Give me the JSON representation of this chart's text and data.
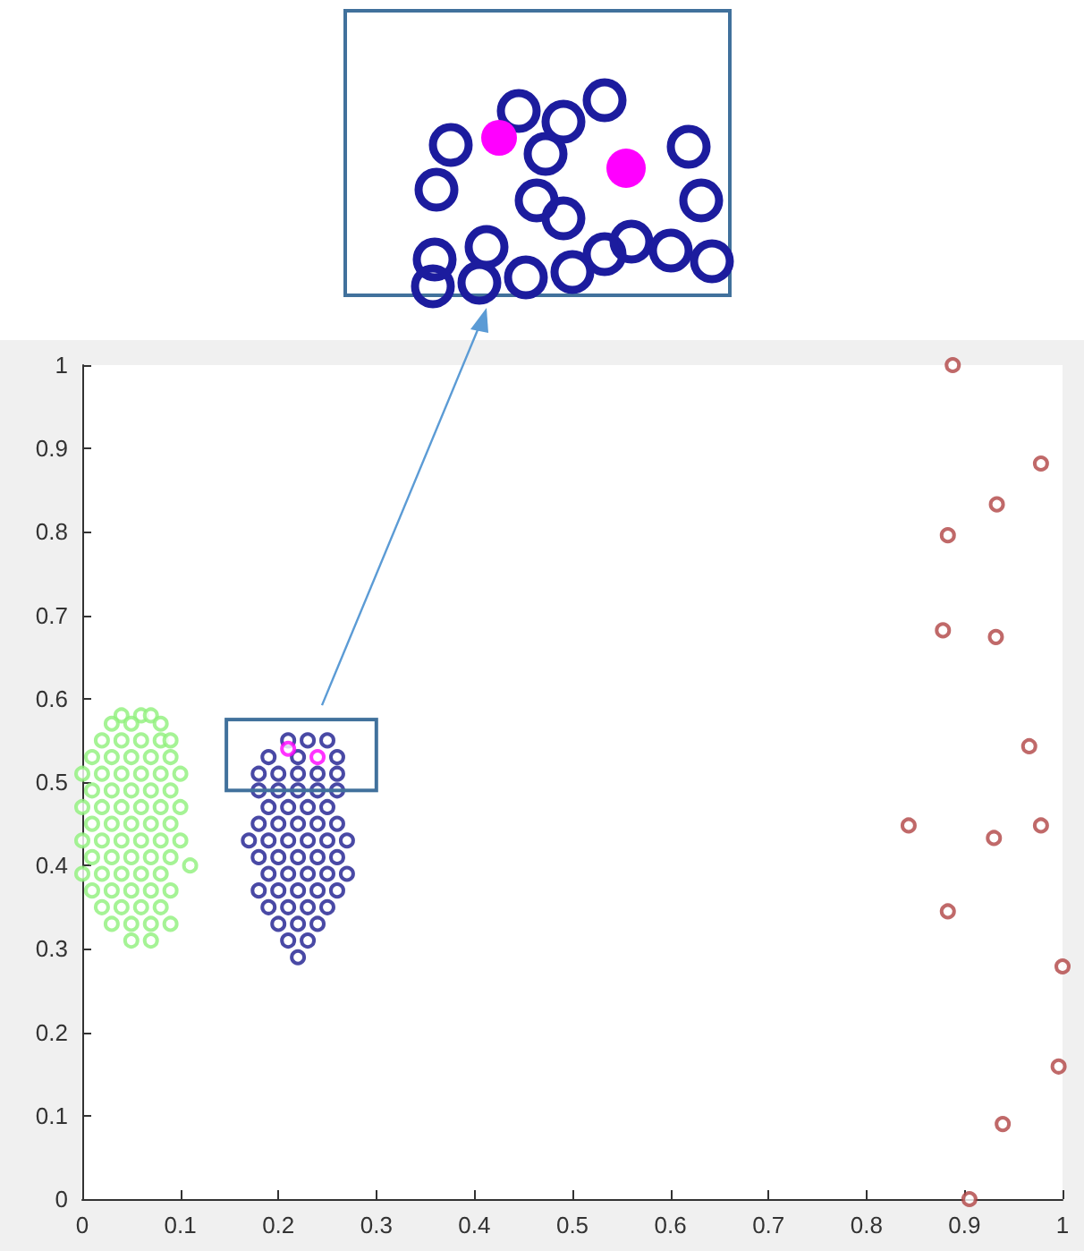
{
  "chart_data": {
    "type": "scatter",
    "series": [
      {
        "color": "#8ef07a",
        "x": [
          0.04,
          0.06,
          0.07,
          0.03,
          0.05,
          0.08,
          0.02,
          0.04,
          0.06,
          0.08,
          0.09,
          0.01,
          0.03,
          0.05,
          0.07,
          0.09,
          0.0,
          0.02,
          0.04,
          0.06,
          0.08,
          0.1,
          0.01,
          0.03,
          0.05,
          0.07,
          0.09,
          0.0,
          0.02,
          0.04,
          0.06,
          0.08,
          0.1,
          0.01,
          0.03,
          0.05,
          0.07,
          0.09,
          0.0,
          0.02,
          0.04,
          0.06,
          0.08,
          0.1,
          0.01,
          0.03,
          0.05,
          0.07,
          0.09,
          0.11,
          0.0,
          0.02,
          0.04,
          0.06,
          0.08,
          0.01,
          0.03,
          0.05,
          0.07,
          0.09,
          0.02,
          0.04,
          0.06,
          0.08,
          0.03,
          0.05,
          0.07,
          0.09,
          0.05,
          0.07
        ],
        "values": [
          0.58,
          0.58,
          0.58,
          0.57,
          0.57,
          0.57,
          0.55,
          0.55,
          0.55,
          0.55,
          0.55,
          0.53,
          0.53,
          0.53,
          0.53,
          0.53,
          0.51,
          0.51,
          0.51,
          0.51,
          0.51,
          0.51,
          0.49,
          0.49,
          0.49,
          0.49,
          0.49,
          0.47,
          0.47,
          0.47,
          0.47,
          0.47,
          0.47,
          0.45,
          0.45,
          0.45,
          0.45,
          0.45,
          0.43,
          0.43,
          0.43,
          0.43,
          0.43,
          0.43,
          0.41,
          0.41,
          0.41,
          0.41,
          0.41,
          0.4,
          0.39,
          0.39,
          0.39,
          0.39,
          0.39,
          0.37,
          0.37,
          0.37,
          0.37,
          0.37,
          0.35,
          0.35,
          0.35,
          0.35,
          0.33,
          0.33,
          0.33,
          0.33,
          0.31,
          0.31
        ]
      },
      {
        "color": "#1c1c8e",
        "x": [
          0.21,
          0.23,
          0.25,
          0.19,
          0.22,
          0.26,
          0.18,
          0.2,
          0.22,
          0.24,
          0.26,
          0.18,
          0.2,
          0.22,
          0.24,
          0.26,
          0.19,
          0.21,
          0.23,
          0.25,
          0.18,
          0.2,
          0.22,
          0.24,
          0.26,
          0.17,
          0.19,
          0.21,
          0.23,
          0.25,
          0.27,
          0.18,
          0.2,
          0.22,
          0.24,
          0.26,
          0.19,
          0.21,
          0.23,
          0.25,
          0.27,
          0.18,
          0.2,
          0.22,
          0.24,
          0.26,
          0.19,
          0.21,
          0.23,
          0.25,
          0.2,
          0.22,
          0.24,
          0.21,
          0.23,
          0.22
        ],
        "values": [
          0.55,
          0.55,
          0.55,
          0.53,
          0.53,
          0.53,
          0.51,
          0.51,
          0.51,
          0.51,
          0.51,
          0.49,
          0.49,
          0.49,
          0.49,
          0.49,
          0.47,
          0.47,
          0.47,
          0.47,
          0.45,
          0.45,
          0.45,
          0.45,
          0.45,
          0.43,
          0.43,
          0.43,
          0.43,
          0.43,
          0.43,
          0.41,
          0.41,
          0.41,
          0.41,
          0.41,
          0.39,
          0.39,
          0.39,
          0.39,
          0.39,
          0.37,
          0.37,
          0.37,
          0.37,
          0.37,
          0.35,
          0.35,
          0.35,
          0.35,
          0.33,
          0.33,
          0.33,
          0.31,
          0.31,
          0.29
        ]
      },
      {
        "color": "#ff00ff",
        "x": [
          0.21,
          0.24
        ],
        "values": [
          0.54,
          0.53
        ]
      },
      {
        "color": "#b04444",
        "x": [
          0.888,
          0.978,
          0.933,
          0.883,
          0.878,
          0.932,
          0.966,
          0.843,
          0.93,
          0.978,
          0.883,
          1.0,
          0.996,
          0.939,
          0.905
        ],
        "values": [
          1.0,
          0.882,
          0.833,
          0.796,
          0.682,
          0.674,
          0.543,
          0.448,
          0.433,
          0.448,
          0.345,
          0.279,
          0.159,
          0.09,
          0.0
        ]
      }
    ],
    "xlim": [
      0,
      1
    ],
    "ylim": [
      0,
      1
    ],
    "xticks": [
      0,
      0.1,
      0.2,
      0.3,
      0.4,
      0.5,
      0.6,
      0.7,
      0.8,
      0.9,
      1
    ],
    "yticks": [
      0,
      0.1,
      0.2,
      0.3,
      0.4,
      0.5,
      0.6,
      0.7,
      0.8,
      0.9,
      1
    ],
    "grid": false,
    "legend": false,
    "marker": "circle"
  }
}
